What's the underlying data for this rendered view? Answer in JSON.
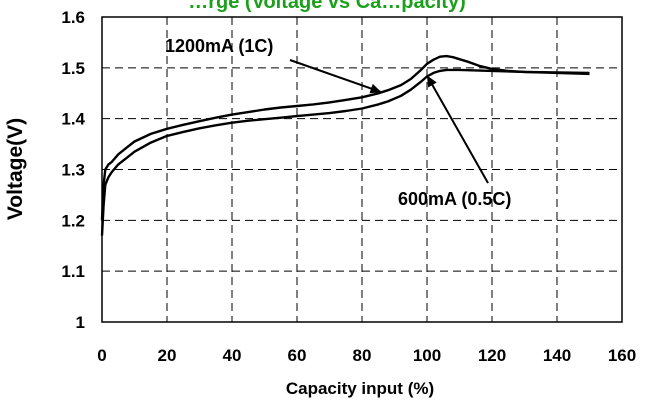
{
  "chart_data": {
    "type": "line",
    "title": "…rge (Voltage vs Ca…pacity)",
    "title_color": "#1aa01a",
    "xlabel": "Capacity input (%)",
    "ylabel": "Voltage(V)",
    "xlim": [
      0,
      160
    ],
    "ylim": [
      1.0,
      1.6
    ],
    "xticks": [
      0,
      20,
      40,
      60,
      80,
      100,
      120,
      140,
      160
    ],
    "yticks": [
      1.0,
      1.1,
      1.2,
      1.3,
      1.4,
      1.5,
      1.6
    ],
    "xtick_labels": [
      "0",
      "20",
      "40",
      "60",
      "80",
      "100",
      "120",
      "140",
      "160"
    ],
    "ytick_labels": [
      "1",
      "1.1",
      "1.2",
      "1.3",
      "1.4",
      "1.5",
      "1.6"
    ],
    "grid": true,
    "series": [
      {
        "name": "1200mA (1C)",
        "x": [
          0,
          0.5,
          1,
          2,
          3,
          5,
          8,
          10,
          15,
          20,
          25,
          30,
          35,
          40,
          45,
          50,
          55,
          60,
          65,
          70,
          75,
          80,
          85,
          88,
          92,
          95,
          98,
          100,
          102,
          104,
          106,
          108,
          110,
          113,
          116,
          120,
          125,
          130,
          140,
          150
        ],
        "y": [
          1.2,
          1.27,
          1.3,
          1.31,
          1.315,
          1.33,
          1.345,
          1.355,
          1.37,
          1.38,
          1.388,
          1.395,
          1.402,
          1.408,
          1.413,
          1.418,
          1.422,
          1.425,
          1.428,
          1.432,
          1.437,
          1.442,
          1.45,
          1.456,
          1.466,
          1.478,
          1.495,
          1.508,
          1.516,
          1.522,
          1.523,
          1.521,
          1.517,
          1.511,
          1.504,
          1.498,
          1.494,
          1.492,
          1.491,
          1.49
        ]
      },
      {
        "name": "600mA (0.5C)",
        "x": [
          0,
          0.5,
          1,
          2,
          3,
          5,
          8,
          10,
          15,
          20,
          25,
          30,
          35,
          40,
          45,
          50,
          55,
          60,
          65,
          70,
          75,
          80,
          85,
          88,
          92,
          95,
          98,
          100,
          102,
          104,
          106,
          108,
          110,
          115,
          120,
          130,
          140,
          150
        ],
        "y": [
          1.17,
          1.23,
          1.27,
          1.285,
          1.295,
          1.31,
          1.325,
          1.335,
          1.353,
          1.366,
          1.374,
          1.381,
          1.387,
          1.392,
          1.396,
          1.399,
          1.402,
          1.405,
          1.408,
          1.411,
          1.415,
          1.42,
          1.428,
          1.434,
          1.445,
          1.457,
          1.472,
          1.483,
          1.49,
          1.494,
          1.496,
          1.496,
          1.496,
          1.495,
          1.494,
          1.492,
          1.49,
          1.488
        ]
      }
    ],
    "annotations": [
      {
        "text": "1200mA (1C)",
        "target_series": "1200mA (1C)"
      },
      {
        "text": "600mA (0.5C)",
        "target_series": "600mA (0.5C)"
      }
    ]
  }
}
